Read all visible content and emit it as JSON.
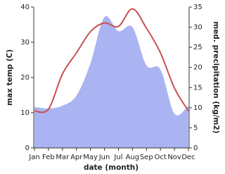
{
  "chart_data": {
    "type": "line",
    "x_label": "date (month)",
    "y_label": "max temp (C)",
    "y2_label": "med. precipitation (kg/m2)",
    "categories": [
      "Jan",
      "Feb",
      "Mar",
      "Apr",
      "May",
      "Jun",
      "Jul",
      "Aug",
      "Sep",
      "Oct",
      "Nov",
      "Dec"
    ],
    "ylim": [
      0,
      40
    ],
    "yticks": [
      0,
      10,
      20,
      30,
      40
    ],
    "y2lim": [
      0,
      35
    ],
    "y2ticks": [
      0,
      5,
      10,
      15,
      20,
      25,
      30,
      35
    ],
    "series": [
      {
        "name": "max temp",
        "color": "#c8504f",
        "values": [
          10.5,
          11,
          21,
          27,
          33,
          35.5,
          34.5,
          39.5,
          34,
          27,
          17,
          10.5
        ]
      },
      {
        "name": "med. precipitation",
        "color": "#aab4f2",
        "axis": "y2",
        "values": [
          10.2,
          9.8,
          10.5,
          13,
          21,
          32.5,
          29,
          30,
          20.5,
          19.5,
          8.5,
          10.5
        ]
      }
    ]
  }
}
